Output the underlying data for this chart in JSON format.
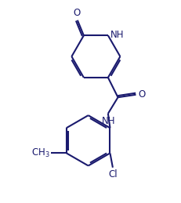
{
  "background_color": "#ffffff",
  "line_color": "#1a1a6e",
  "text_color": "#1a1a6e",
  "line_width": 1.5,
  "font_size": 8.5,
  "figsize": [
    2.31,
    2.59
  ],
  "dpi": 100,
  "xlim": [
    0,
    10
  ],
  "ylim": [
    0,
    11
  ]
}
